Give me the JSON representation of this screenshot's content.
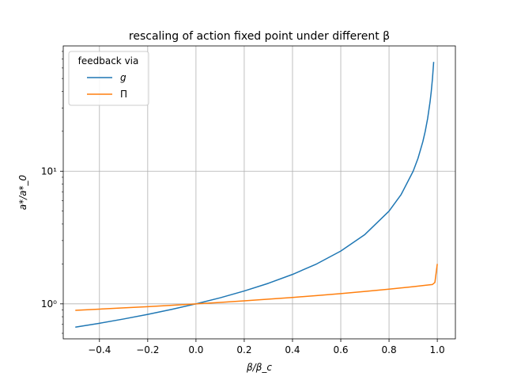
{
  "chart_data": {
    "type": "line",
    "title": "rescaling of action fixed point under different β",
    "xlabel": "β/β_c",
    "ylabel": "a*/a*_0",
    "xlim": [
      -0.55,
      1.075
    ],
    "ylim": [
      0.545,
      88
    ],
    "yscale": "log",
    "grid": true,
    "x_ticks": [
      -0.4,
      -0.2,
      0.0,
      0.2,
      0.4,
      0.6,
      0.8,
      1.0
    ],
    "x_tick_labels": [
      "−0.4",
      "−0.2",
      "0.0",
      "0.2",
      "0.4",
      "0.6",
      "0.8",
      "1.0"
    ],
    "y_ticks": [
      1,
      10
    ],
    "y_tick_labels": [
      "10⁰",
      "10¹"
    ],
    "legend": {
      "title": "feedback via",
      "location": "upper-left"
    },
    "series": [
      {
        "name": "g",
        "color": "#1f77b4",
        "x": [
          -0.5,
          -0.4,
          -0.3,
          -0.2,
          -0.1,
          0.0,
          0.1,
          0.2,
          0.3,
          0.4,
          0.5,
          0.6,
          0.7,
          0.8,
          0.85,
          0.9,
          0.92,
          0.94,
          0.95,
          0.96,
          0.97,
          0.975,
          0.98,
          0.985
        ],
        "y": [
          0.667,
          0.714,
          0.769,
          0.833,
          0.909,
          1.0,
          1.111,
          1.25,
          1.429,
          1.667,
          2.0,
          2.5,
          3.333,
          5.0,
          6.667,
          10.0,
          12.5,
          16.67,
          20.0,
          25.0,
          33.33,
          40.0,
          50.0,
          66.67
        ]
      },
      {
        "name": "Π",
        "color": "#ff7f0e",
        "x": [
          -0.5,
          -0.4,
          -0.3,
          -0.2,
          -0.1,
          0.0,
          0.1,
          0.2,
          0.3,
          0.4,
          0.5,
          0.6,
          0.7,
          0.8,
          0.9,
          0.95,
          0.98,
          0.99,
          1.0
        ],
        "y": [
          0.894,
          0.913,
          0.933,
          0.953,
          0.976,
          1.0,
          1.026,
          1.054,
          1.085,
          1.118,
          1.155,
          1.195,
          1.24,
          1.29,
          1.348,
          1.381,
          1.4,
          1.45,
          2.0
        ]
      }
    ]
  }
}
